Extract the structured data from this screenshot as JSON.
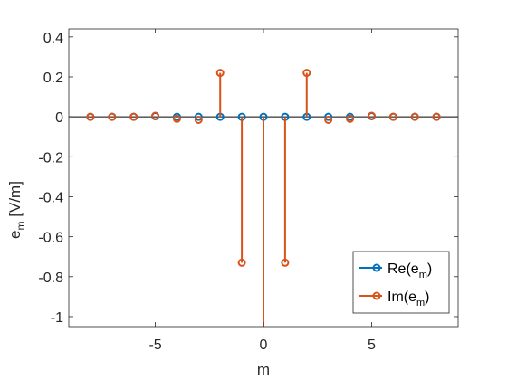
{
  "chart_data": {
    "type": "stem",
    "xlabel": "m",
    "ylabel": {
      "base": "e",
      "sub": "m",
      "tail": " [V/m]"
    },
    "xlim": [
      -9,
      9
    ],
    "ylim": [
      -1.05,
      0.44
    ],
    "xticks": [
      -5,
      0,
      5
    ],
    "xtick_labels": [
      "-5",
      "0",
      "5"
    ],
    "yticks": [
      0.4,
      0.2,
      0,
      -0.2,
      -0.4,
      -0.6,
      -0.8,
      -1
    ],
    "ytick_labels": [
      "0.4",
      "0.2",
      "0",
      "-0.2",
      "-0.4",
      "-0.6",
      "-0.8",
      "-1"
    ],
    "grid": false,
    "legend_position": "bottom-right",
    "x": [
      -8,
      -7,
      -6,
      -5,
      -4,
      -3,
      -2,
      -1,
      0,
      1,
      2,
      3,
      4,
      5,
      6,
      7,
      8
    ],
    "series": [
      {
        "name": {
          "base": "Re(e",
          "sub": "m",
          "tail": ")"
        },
        "color": "#0072BD",
        "values": [
          0,
          0,
          0,
          0.003,
          0,
          0,
          0,
          0,
          0,
          0,
          0,
          0,
          0,
          0.003,
          0,
          0,
          0
        ]
      },
      {
        "name": {
          "base": "Im(e",
          "sub": "m",
          "tail": ")"
        },
        "color": "#D95319",
        "values": [
          0,
          0,
          0,
          0.005,
          -0.01,
          -0.015,
          0.22,
          -0.73,
          -1.1,
          -0.73,
          0.22,
          -0.015,
          -0.01,
          0.005,
          0,
          0,
          0
        ]
      }
    ]
  }
}
